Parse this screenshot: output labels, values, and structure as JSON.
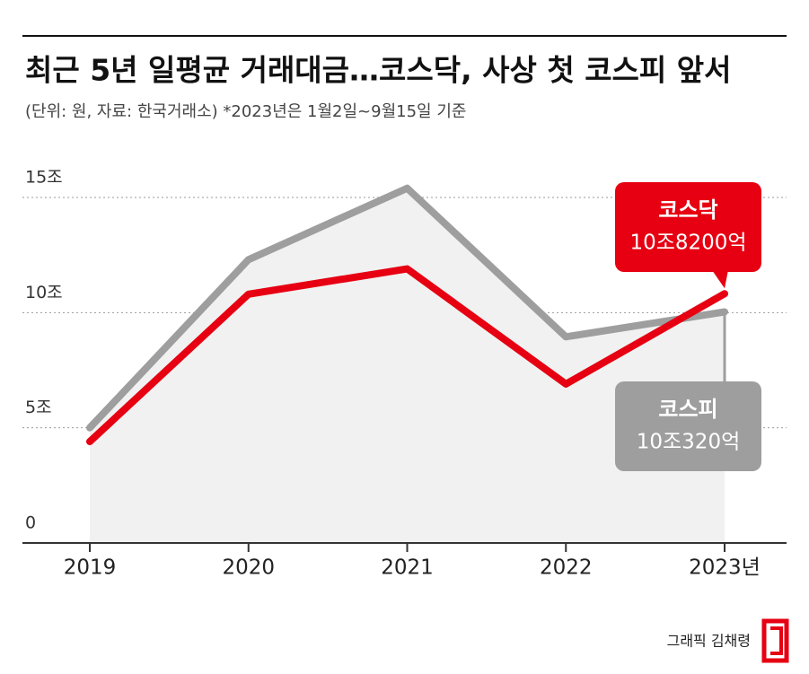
{
  "chart_data": {
    "type": "line",
    "title": "최근 5년 일평균 거래대금…코스닥, 사상 첫 코스피 앞서",
    "subtitle": "(단위: 원, 자료: 한국거래소)  *2023년은 1월2일~9월15일 기준",
    "credit": "그래픽 김채령",
    "categories": [
      "2019",
      "2020",
      "2021",
      "2022",
      "2023년"
    ],
    "ylim": [
      0,
      15
    ],
    "yticks": [
      0,
      {
        "value": 5,
        "label": "5조"
      },
      {
        "value": 10,
        "label": "10조"
      },
      {
        "value": 15,
        "label": "15조"
      }
    ],
    "grid": true,
    "series": [
      {
        "name": "코스피",
        "color": "#9e9e9e",
        "values": [
          5.0,
          12.3,
          15.4,
          8.95,
          10.032
        ],
        "value_labels": [
          null,
          null,
          null,
          null,
          "10조320억"
        ]
      },
      {
        "name": "코스닥",
        "color": "#e60012",
        "values": [
          4.4,
          10.8,
          11.9,
          6.9,
          10.82
        ],
        "value_labels": [
          null,
          null,
          null,
          null,
          "10조8200억"
        ]
      }
    ]
  }
}
